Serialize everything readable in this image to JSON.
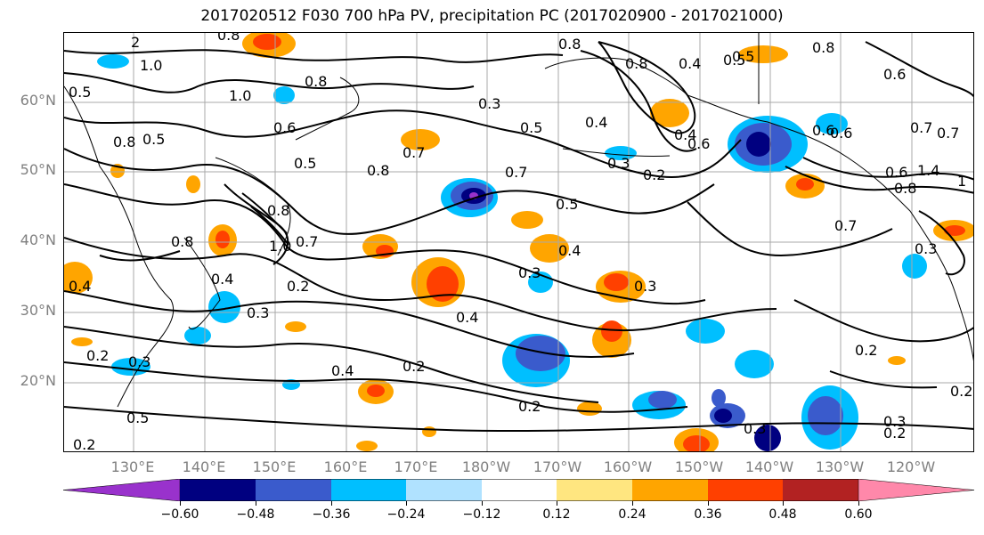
{
  "title": "2017020512 F030 700 hPa PV, precipitation PC (2017020900 - 2017021000)",
  "lat_labels": [
    "60°N",
    "50°N",
    "40°N",
    "30°N",
    "20°N"
  ],
  "lon_labels": [
    "130°E",
    "140°E",
    "150°E",
    "160°E",
    "170°E",
    "180°W",
    "170°W",
    "160°W",
    "150°W",
    "140°W",
    "130°W",
    "120°W"
  ],
  "colorbar": {
    "ticks": [
      "−0.60",
      "−0.48",
      "−0.36",
      "−0.24",
      "−0.12",
      "0.12",
      "0.24",
      "0.36",
      "0.48",
      "0.60"
    ],
    "colors": [
      "#9932cc",
      "#000080",
      "#3a5bcc",
      "#00bfff",
      "#b0e2ff",
      "#ffffff",
      "#ffe680",
      "#ffa500",
      "#ff4000",
      "#b22222",
      "#ff88aa"
    ]
  },
  "contour_labels": [
    "2",
    "1.0",
    "0.8",
    "0.5",
    "1.0",
    "0.8",
    "0.8",
    "0.6",
    "0.5",
    "0.8",
    "0.5",
    "0.7",
    "0.3",
    "0.5",
    "0.4",
    "0.8",
    "0.8",
    "0.4",
    "0.5",
    "0.8",
    "0.6",
    "0.7",
    "0.4",
    "0.6",
    "0.6",
    "0.2",
    "0.8",
    "0.3",
    "0.7",
    "0.5",
    "1.0",
    "0.7",
    "0.8",
    "0.4",
    "0.3",
    "0.4",
    "0.4",
    "0.3",
    "0.3",
    "0.7",
    "0.3",
    "0.2",
    "0.3",
    "0.4",
    "0.2",
    "0.2",
    "0.5",
    "0.2",
    "0.2",
    "0.3",
    "0.2",
    "0.3",
    "0.2",
    "0.2",
    "0.5",
    "0.6",
    "0.4",
    "1.4",
    "0.6",
    "0.8",
    "0.7",
    "1"
  ]
}
